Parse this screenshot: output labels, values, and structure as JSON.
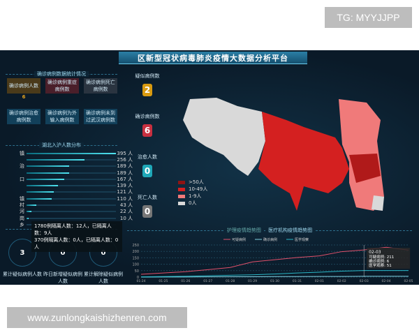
{
  "watermarks": {
    "top": "TG: MYYJJPP",
    "bottom": "www.zunlongkaishizhenren.com"
  },
  "title": "区新型冠状病毒肺炎疫情大数据分析平台",
  "confirmed_section": {
    "title": "确诊病例数据统计情况",
    "cards": [
      {
        "label": "确诊病例人数",
        "value": "6",
        "color": "#e0a020"
      },
      {
        "label": "确诊病例重症病例数",
        "value": "",
        "color": "#d23a4a"
      },
      {
        "label": "确诊病例死亡病例数",
        "value": "",
        "color": "#cccccc"
      },
      {
        "label": "确诊病例治愈病例数",
        "value": "",
        "color": "#2aa0d0"
      },
      {
        "label": "确诊病例为外输入病例数",
        "value": "",
        "color": "#2aa0d0"
      },
      {
        "label": "确诊病例未到过武汉病例数",
        "value": "",
        "color": "#2aa0d0"
      }
    ]
  },
  "hubei_section": {
    "title": "湖北入沪人数分布",
    "items": [
      {
        "label": "镇",
        "value": 395,
        "text": "395 人"
      },
      {
        "label": "",
        "value": 256,
        "text": "256 人"
      },
      {
        "label": "治",
        "value": 189,
        "text": "189 人"
      },
      {
        "label": "",
        "value": 189,
        "text": "189 人"
      },
      {
        "label": "口",
        "value": 167,
        "text": "167 人"
      },
      {
        "label": "",
        "value": 139,
        "text": "139 人"
      },
      {
        "label": "",
        "value": 121,
        "text": "121 人"
      },
      {
        "label": "镇",
        "value": 110,
        "text": "110 人"
      },
      {
        "label": "村",
        "value": 43,
        "text": "43 人"
      },
      {
        "label": "河",
        "value": 22,
        "text": "22 人"
      },
      {
        "label": "岗",
        "value": 10,
        "text": "10 人"
      },
      {
        "label": "乡",
        "value": 0,
        "text": ""
      }
    ]
  },
  "tooltip": [
    "1780例隔离人数：12人，已隔离人数：9人",
    "370例隔离人数：0人，已隔离人数：0人"
  ],
  "suspect_circles": [
    {
      "label": "累计疑似病例人数",
      "value": "3"
    },
    {
      "label": "昨日新增疑似病例人数",
      "value": "0"
    },
    {
      "label": "累计解除疑似病例人数",
      "value": "0"
    }
  ],
  "center_stats": [
    {
      "label": "疑似病例数",
      "value": "2",
      "color": "#d89a10"
    },
    {
      "label": "确诊病例数",
      "value": "6",
      "color": "#c83040"
    },
    {
      "label": "治愈人数",
      "value": "0",
      "color": "#1fa8b8"
    },
    {
      "label": "死亡人数",
      "value": "0",
      "color": "#777777"
    }
  ],
  "map_legend": [
    {
      "label": ">50人",
      "color": "#8e1414"
    },
    {
      "label": "10-49人",
      "color": "#d42020"
    },
    {
      "label": "1-9人",
      "color": "#f07a7a"
    },
    {
      "label": "0人",
      "color": "#d9d9d9"
    }
  ],
  "chart_data": {
    "type": "line",
    "title": "医疗机构疫情趋势图",
    "tab_left": "护理疫情趋势图",
    "ylim": [
      0,
      250
    ],
    "yticks": [
      0,
      50,
      100,
      150,
      200,
      250
    ],
    "categories": [
      "01-24",
      "01-25",
      "01-26",
      "01-27",
      "01-28",
      "01-29",
      "01-30",
      "01-31",
      "02-01",
      "02-02",
      "02-03",
      "02-04",
      "02-05"
    ],
    "series": [
      {
        "name": "可疑病例",
        "color": "#e0506a",
        "values": [
          22,
          32,
          42,
          58,
          75,
          118,
          135,
          152,
          165,
          198,
          211,
          232,
          210
        ]
      },
      {
        "name": "确诊病例",
        "color": "#7fd0e0",
        "values": [
          0,
          1,
          1,
          2,
          3,
          3,
          4,
          4,
          5,
          5,
          6,
          6,
          6
        ]
      },
      {
        "name": "医学观察",
        "color": "#2ab8c8",
        "values": [
          2,
          4,
          6,
          10,
          14,
          18,
          24,
          32,
          38,
          46,
          51,
          51,
          51
        ]
      }
    ],
    "tooltip": {
      "date": "02-03",
      "rows": [
        "可疑病例: 211",
        "确诊病例: 6",
        "医学观察: 51"
      ]
    },
    "grid": true,
    "legend": "top"
  }
}
